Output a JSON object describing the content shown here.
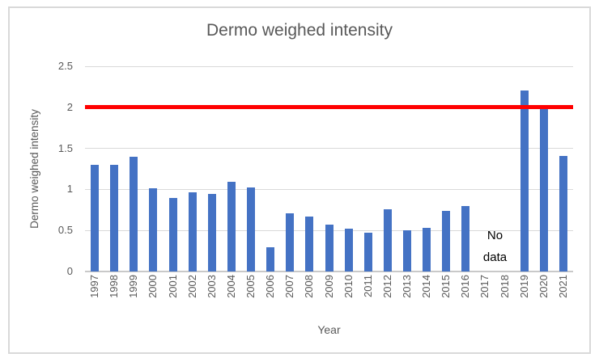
{
  "chart_data": {
    "type": "bar",
    "title": "Dermo weighed intensity",
    "xlabel": "Year",
    "ylabel": "Dermo weighed intensity",
    "categories": [
      "1997",
      "1998",
      "1999",
      "2000",
      "2001",
      "2002",
      "2003",
      "2004",
      "2005",
      "2006",
      "2007",
      "2008",
      "2009",
      "2010",
      "2011",
      "2012",
      "2013",
      "2014",
      "2015",
      "2016",
      "2017",
      "2018",
      "2019",
      "2020",
      "2021"
    ],
    "values": [
      1.3,
      1.3,
      1.4,
      1.01,
      0.9,
      0.96,
      0.94,
      1.09,
      1.02,
      0.3,
      0.71,
      0.67,
      0.57,
      0.52,
      0.47,
      0.76,
      0.5,
      0.53,
      0.74,
      0.8,
      null,
      null,
      2.2,
      2.0,
      1.41
    ],
    "ylim": [
      0,
      2.5
    ],
    "yticks": [
      0,
      0.5,
      1,
      1.5,
      2,
      2.5
    ],
    "grid": true,
    "legend": false,
    "bar_color": "#4472C4",
    "threshold_line": {
      "value": 2,
      "color": "#FF0000"
    },
    "annotations": [
      {
        "text": "No data",
        "x_categories": [
          "2017",
          "2018"
        ],
        "color": "#000000"
      }
    ],
    "text_color": "#595959",
    "gridline_color": "#D9D9D9"
  }
}
